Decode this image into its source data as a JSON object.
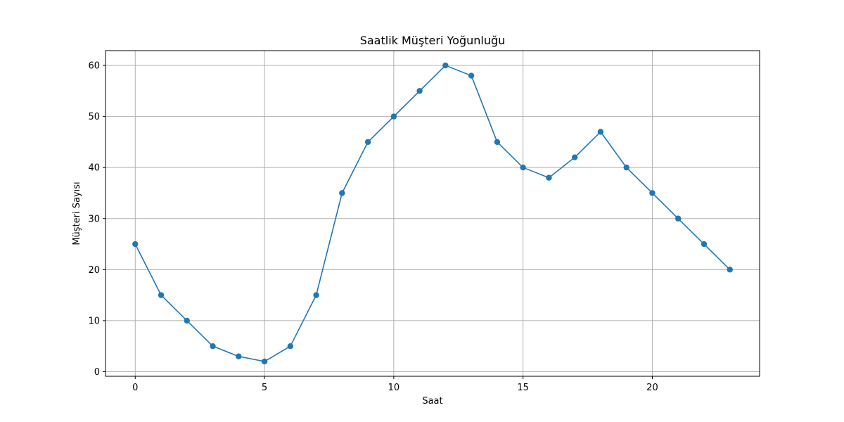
{
  "chart_data": {
    "type": "line",
    "title": "Saatlik Müşteri Yoğunluğu",
    "xlabel": "Saat",
    "ylabel": "Müşteri Sayısı",
    "x": [
      0,
      1,
      2,
      3,
      4,
      5,
      6,
      7,
      8,
      9,
      10,
      11,
      12,
      13,
      14,
      15,
      16,
      17,
      18,
      19,
      20,
      21,
      22,
      23
    ],
    "series": [
      {
        "values": [
          25,
          15,
          10,
          5,
          3,
          2,
          5,
          15,
          35,
          45,
          50,
          55,
          60,
          58,
          45,
          40,
          38,
          42,
          47,
          40,
          35,
          30,
          25,
          20
        ],
        "color": "#1f77b4",
        "marker": "circle"
      }
    ],
    "xlim": [
      -1.15,
      24.15
    ],
    "ylim": [
      -0.9,
      62.9
    ],
    "xticks": [
      0,
      5,
      10,
      15,
      20
    ],
    "yticks": [
      0,
      10,
      20,
      30,
      40,
      50,
      60
    ],
    "grid": true
  }
}
